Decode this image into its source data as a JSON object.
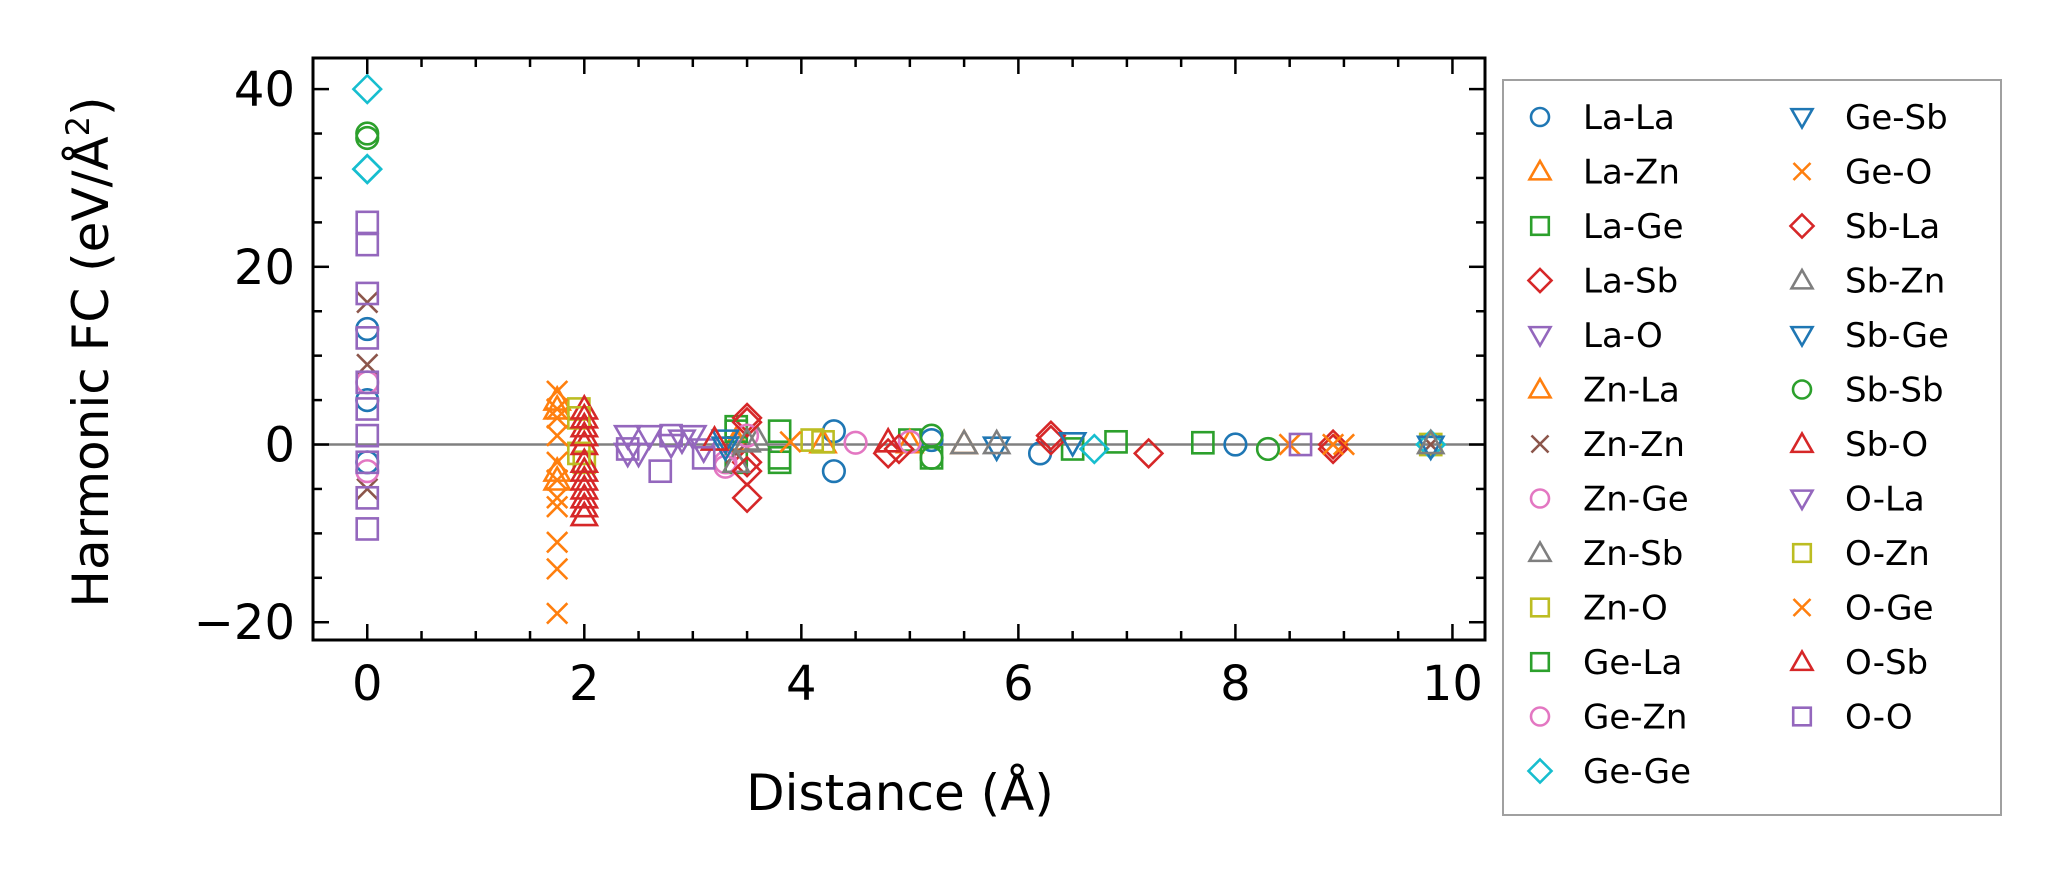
{
  "chart_data": {
    "type": "scatter",
    "xlabel": "Distance (Å)",
    "ylabel_main": "Harmonic FC (eV/Å",
    "ylabel_sup": "2",
    "ylabel_close": ")",
    "xlim": [
      -0.5,
      10.3
    ],
    "ylim": [
      -22,
      43.5
    ],
    "x_ticks": [
      0,
      2,
      4,
      6,
      8,
      10
    ],
    "y_ticks": [
      -20,
      0,
      20,
      40
    ],
    "x_tick_labels": [
      "0",
      "2",
      "4",
      "6",
      "8",
      "10"
    ],
    "y_tick_labels": [
      "−20",
      "0",
      "20",
      "40"
    ],
    "x_minor_step": 0.5,
    "y_minor_step": 5,
    "zero_line": 0,
    "legend_position": "outside-right",
    "series": [
      {
        "name": "La-La",
        "marker": "circle",
        "color": "#1f77b4",
        "points": [
          [
            0,
            13
          ],
          [
            0,
            -2
          ],
          [
            0,
            5
          ],
          [
            4.3,
            -3
          ],
          [
            4.3,
            1.5
          ],
          [
            5.2,
            0.5
          ],
          [
            6.2,
            -1
          ],
          [
            8.0,
            0
          ]
        ]
      },
      {
        "name": "La-Zn",
        "marker": "triangle-up",
        "color": "#ff7f0e",
        "points": [
          [
            1.75,
            5
          ],
          [
            1.75,
            -4
          ],
          [
            3.4,
            0.5
          ],
          [
            4.2,
            0.2
          ],
          [
            5.5,
            0.1
          ]
        ]
      },
      {
        "name": "La-Ge",
        "marker": "square",
        "color": "#2ca02c",
        "points": [
          [
            3.4,
            2
          ],
          [
            3.4,
            -2
          ],
          [
            3.8,
            1.5
          ],
          [
            3.8,
            -2
          ],
          [
            5.0,
            0.5
          ],
          [
            6.5,
            -0.5
          ],
          [
            7.7,
            0.2
          ]
        ]
      },
      {
        "name": "La-Sb",
        "marker": "diamond",
        "color": "#d62728",
        "points": [
          [
            3.5,
            3
          ],
          [
            3.5,
            -2
          ],
          [
            3.5,
            -6
          ],
          [
            4.8,
            -1
          ],
          [
            6.3,
            1
          ],
          [
            7.2,
            -1
          ],
          [
            8.9,
            0
          ]
        ]
      },
      {
        "name": "La-O",
        "marker": "triangle-down",
        "color": "#9467bd",
        "points": [
          [
            2.4,
            -1
          ],
          [
            2.6,
            1
          ],
          [
            2.9,
            0.5
          ],
          [
            3.1,
            -0.5
          ]
        ]
      },
      {
        "name": "Zn-La",
        "marker": "triangle-up",
        "color": "#ff7f0e",
        "points": [
          [
            1.75,
            4
          ],
          [
            1.75,
            -3
          ],
          [
            3.4,
            0.3
          ],
          [
            5.0,
            0.2
          ]
        ]
      },
      {
        "name": "Zn-Zn",
        "marker": "x",
        "color": "#8c564b",
        "points": [
          [
            0,
            16
          ],
          [
            0,
            -5
          ],
          [
            0,
            9
          ],
          [
            3.4,
            -1
          ],
          [
            9.8,
            0
          ]
        ]
      },
      {
        "name": "Zn-Ge",
        "marker": "circle",
        "color": "#e377c2",
        "points": [
          [
            0,
            7
          ],
          [
            0,
            -3
          ],
          [
            3.3,
            -2
          ],
          [
            4.5,
            0.2
          ]
        ]
      },
      {
        "name": "Zn-Sb",
        "marker": "triangle-up",
        "color": "#7f7f7f",
        "points": [
          [
            3.4,
            -2
          ],
          [
            3.6,
            0.5
          ],
          [
            5.5,
            0.1
          ]
        ]
      },
      {
        "name": "Zn-O",
        "marker": "square",
        "color": "#bcbd22",
        "points": [
          [
            1.95,
            4
          ],
          [
            2.0,
            -2
          ],
          [
            4.2,
            0.3
          ],
          [
            9.8,
            0
          ]
        ]
      },
      {
        "name": "Ge-La",
        "marker": "square",
        "color": "#2ca02c",
        "points": [
          [
            3.4,
            1.5
          ],
          [
            3.8,
            -1.5
          ],
          [
            5.2,
            -1.5
          ],
          [
            6.9,
            0.3
          ]
        ]
      },
      {
        "name": "Ge-Zn",
        "marker": "circle",
        "color": "#e377c2",
        "points": [
          [
            3.3,
            -2.5
          ],
          [
            3.5,
            1
          ],
          [
            5.0,
            0.3
          ]
        ]
      },
      {
        "name": "Ge-Ge",
        "marker": "diamond",
        "color": "#17becf",
        "points": [
          [
            0,
            40
          ],
          [
            0,
            31
          ],
          [
            0,
            31
          ],
          [
            6.7,
            -0.5
          ],
          [
            9.8,
            0
          ]
        ]
      },
      {
        "name": "Ge-Sb",
        "marker": "triangle-down",
        "color": "#1f77b4",
        "points": [
          [
            3.3,
            0.5
          ],
          [
            5.8,
            -0.3
          ],
          [
            9.8,
            -0.2
          ]
        ]
      },
      {
        "name": "Ge-O",
        "marker": "x",
        "color": "#ff7f0e",
        "points": [
          [
            1.75,
            -19
          ],
          [
            1.75,
            -14
          ],
          [
            1.75,
            -11
          ],
          [
            1.75,
            -7
          ],
          [
            1.75,
            -4
          ],
          [
            1.75,
            3
          ],
          [
            1.75,
            6
          ],
          [
            8.5,
            0
          ],
          [
            9.0,
            0
          ]
        ]
      },
      {
        "name": "Sb-La",
        "marker": "diamond",
        "color": "#d62728",
        "points": [
          [
            3.5,
            2.5
          ],
          [
            3.5,
            -3
          ],
          [
            4.9,
            -0.5
          ],
          [
            6.3,
            0.5
          ],
          [
            8.9,
            -0.5
          ]
        ]
      },
      {
        "name": "Sb-Zn",
        "marker": "triangle-up",
        "color": "#7f7f7f",
        "points": [
          [
            3.5,
            0.3
          ],
          [
            5.8,
            0.1
          ],
          [
            9.8,
            0.1
          ]
        ]
      },
      {
        "name": "Sb-Ge",
        "marker": "triangle-down",
        "color": "#1f77b4",
        "points": [
          [
            3.3,
            -0.3
          ],
          [
            6.5,
            0.2
          ]
        ]
      },
      {
        "name": "Sb-Sb",
        "marker": "circle",
        "color": "#2ca02c",
        "points": [
          [
            0,
            35
          ],
          [
            0,
            34.5
          ],
          [
            5.2,
            1
          ],
          [
            5.2,
            -1.5
          ],
          [
            8.3,
            -0.5
          ]
        ]
      },
      {
        "name": "Sb-O",
        "marker": "triangle-up",
        "color": "#d62728",
        "points": [
          [
            2.0,
            -8
          ],
          [
            2.0,
            -6
          ],
          [
            2.0,
            -4
          ],
          [
            2.0,
            -2
          ],
          [
            2.0,
            0
          ],
          [
            2.0,
            2
          ],
          [
            2.0,
            4
          ],
          [
            3.2,
            0.5
          ]
        ]
      },
      {
        "name": "O-La",
        "marker": "triangle-down",
        "color": "#9467bd",
        "points": [
          [
            2.4,
            1
          ],
          [
            2.5,
            -1
          ],
          [
            2.8,
            0
          ],
          [
            3.0,
            1
          ]
        ]
      },
      {
        "name": "O-Zn",
        "marker": "square",
        "color": "#bcbd22",
        "points": [
          [
            1.95,
            3
          ],
          [
            1.95,
            -1
          ],
          [
            4.1,
            0.5
          ]
        ]
      },
      {
        "name": "O-Ge",
        "marker": "x",
        "color": "#ff7f0e",
        "points": [
          [
            1.75,
            -6
          ],
          [
            1.75,
            -2
          ],
          [
            1.75,
            1
          ],
          [
            1.75,
            4
          ],
          [
            3.9,
            0.3
          ],
          [
            8.9,
            0
          ]
        ]
      },
      {
        "name": "O-Sb",
        "marker": "triangle-up",
        "color": "#d62728",
        "points": [
          [
            2.0,
            -7
          ],
          [
            2.0,
            -5
          ],
          [
            2.0,
            -3
          ],
          [
            2.0,
            1
          ],
          [
            2.0,
            3
          ],
          [
            4.8,
            0.3
          ]
        ]
      },
      {
        "name": "O-O",
        "marker": "square",
        "color": "#9467bd",
        "points": [
          [
            0,
            25
          ],
          [
            0,
            22.5
          ],
          [
            0,
            17
          ],
          [
            0,
            12
          ],
          [
            0,
            7
          ],
          [
            0,
            4
          ],
          [
            0,
            1
          ],
          [
            0,
            -2
          ],
          [
            0,
            -6
          ],
          [
            0,
            -9.5
          ],
          [
            2.4,
            -0.5
          ],
          [
            2.7,
            -3
          ],
          [
            2.8,
            1
          ],
          [
            3.1,
            -1.5
          ],
          [
            8.6,
            0
          ]
        ]
      }
    ]
  }
}
